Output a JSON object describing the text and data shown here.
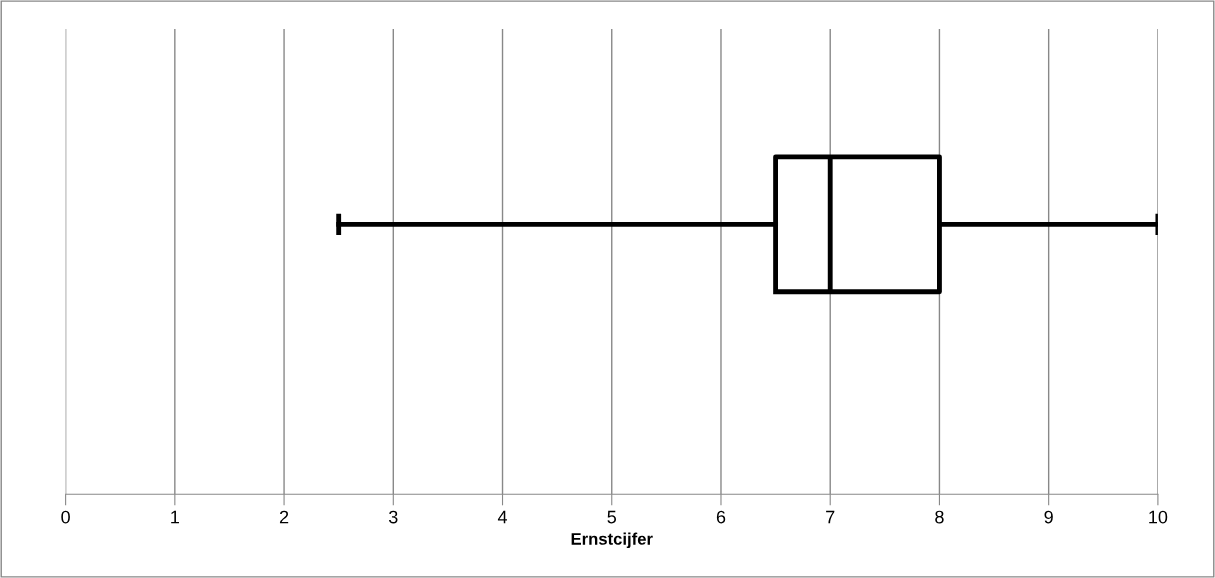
{
  "chart_data": {
    "type": "box",
    "orientation": "horizontal",
    "xlabel": "Ernstcijfer",
    "categories": [
      null
    ],
    "boxes": [
      {
        "low": 2.5,
        "q1": 6.5,
        "median": 7,
        "q3": 8,
        "high": 10
      }
    ],
    "color": "#000000",
    "xlim": [
      0,
      10
    ],
    "xticks": [
      0,
      1,
      2,
      3,
      4,
      5,
      6,
      7,
      8,
      9,
      10
    ],
    "grid": "x",
    "tick_labels": "x"
  }
}
